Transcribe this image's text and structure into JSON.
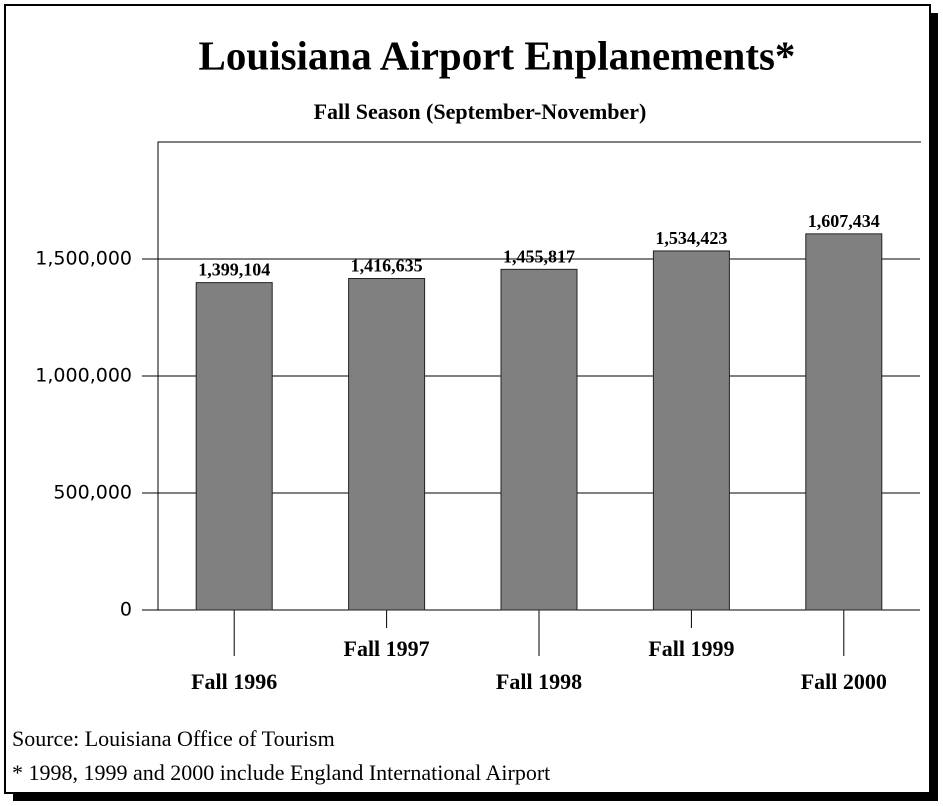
{
  "chart_data": {
    "type": "bar",
    "title": "Louisiana Airport Enplanements*",
    "subtitle": "Fall Season (September-November)",
    "categories": [
      "Fall 1996",
      "Fall 1997",
      "Fall 1998",
      "Fall 1999",
      "Fall 2000"
    ],
    "values": [
      1399104,
      1416635,
      1455817,
      1534423,
      1607434
    ],
    "value_labels": [
      "1,399,104",
      "1,416,635",
      "1,455,817",
      "1,534,423",
      "1,607,434"
    ],
    "color": "#808080",
    "ylim": [
      0,
      2000000
    ],
    "yticks": [
      0,
      {
        "value": 500000,
        "label": "500,000"
      },
      {
        "value": 1000000,
        "label": "1,000,000"
      },
      {
        "value": 1500000,
        "label": "1,500,000"
      }
    ],
    "grid": true,
    "notes": [
      "Source: Louisiana Office of Tourism",
      "* 1998, 1999 and 2000 include England International Airport"
    ]
  }
}
